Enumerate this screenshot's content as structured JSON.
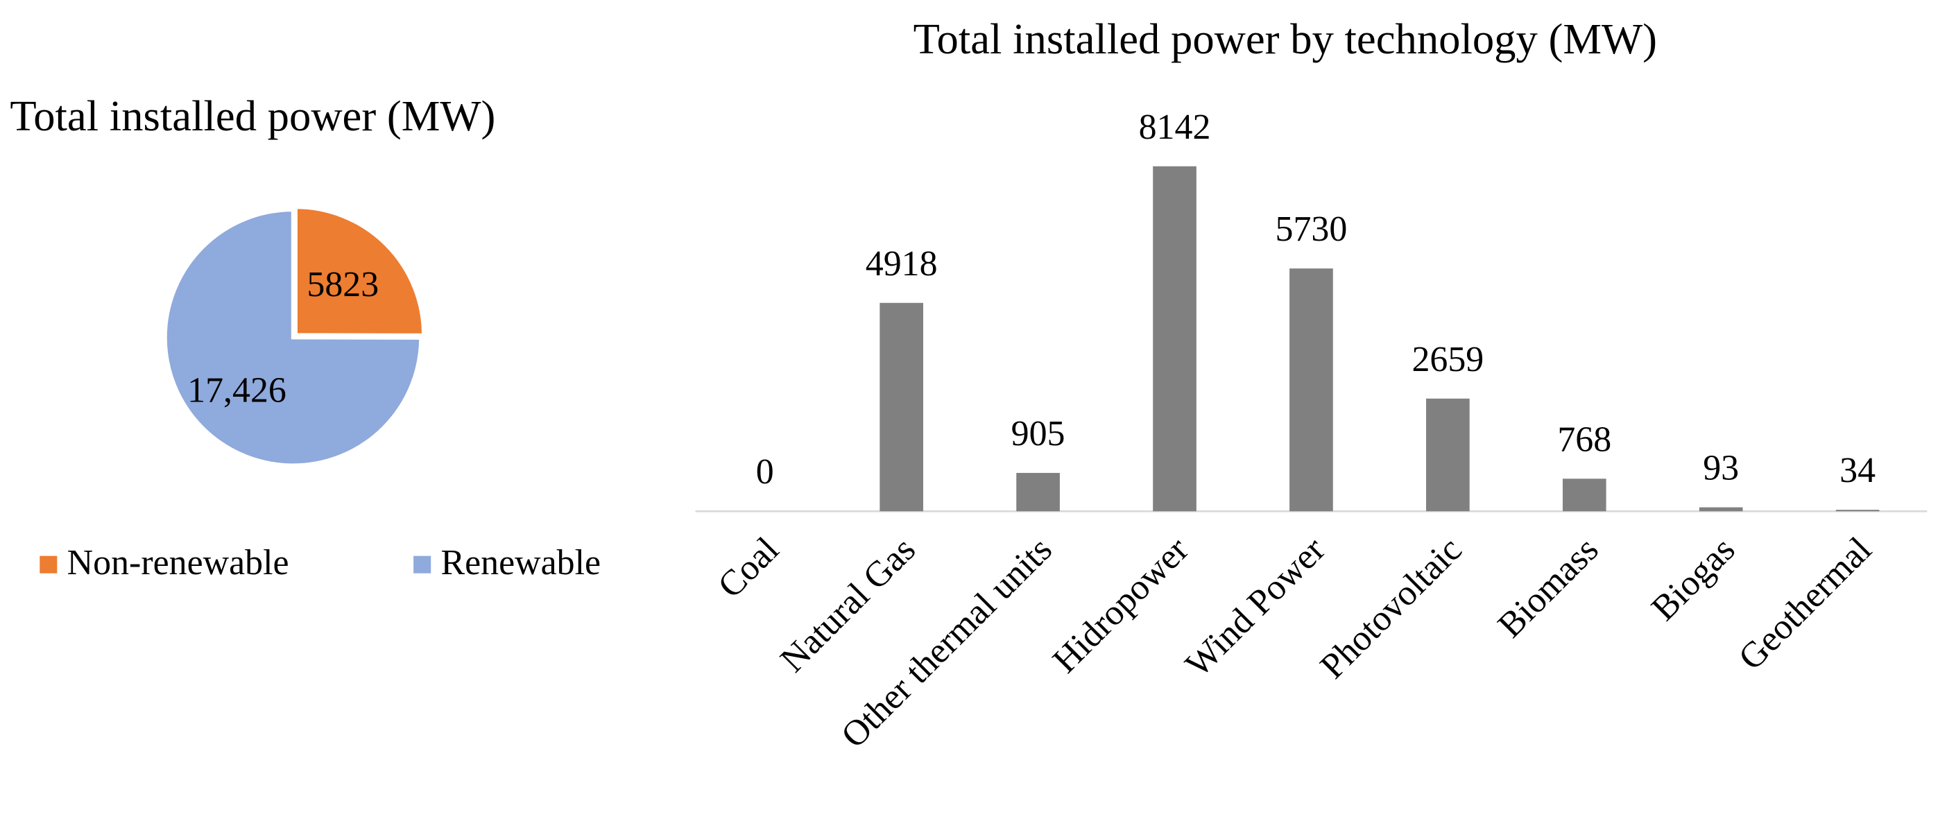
{
  "chart_data": [
    {
      "type": "pie",
      "title": "Total installed power (MW)",
      "categories": [
        "Non-renewable",
        "Renewable"
      ],
      "values": [
        5823,
        17426
      ],
      "value_labels": [
        "5823",
        "17,426"
      ],
      "colors": [
        "#ed7d31",
        "#8faadc"
      ],
      "legend": "bottom"
    },
    {
      "type": "bar",
      "title": "Total installed power by technology (MW)",
      "categories": [
        "Coal",
        "Natural Gas",
        "Other thermal units",
        "Hidropower",
        "Wind Power",
        "Photovoltaic",
        "Biomass",
        "Biogas",
        "Geothermal"
      ],
      "values": [
        0,
        4918,
        905,
        8142,
        5730,
        2659,
        768,
        93,
        34
      ],
      "color": "#808080"
    }
  ]
}
